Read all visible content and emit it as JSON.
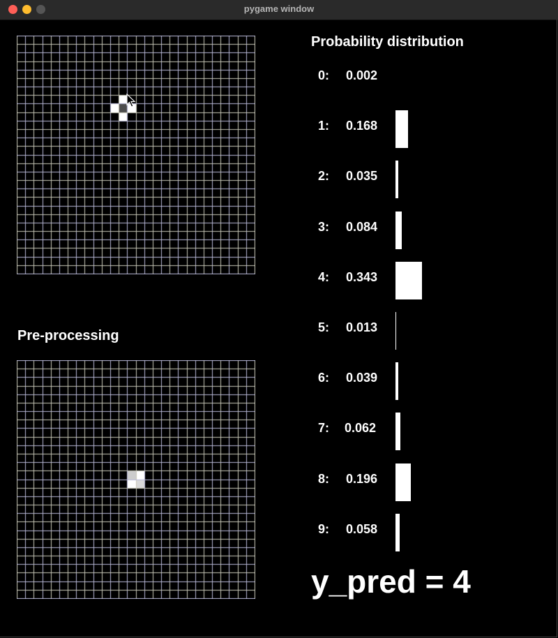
{
  "window": {
    "title": "pygame window"
  },
  "input_grid": {
    "rows": 28,
    "cols": 28,
    "filled_cells": [
      {
        "r": 7,
        "c": 12,
        "v": 1.0
      },
      {
        "r": 8,
        "c": 11,
        "v": 1.0
      },
      {
        "r": 8,
        "c": 12,
        "v": 0.3
      },
      {
        "r": 8,
        "c": 13,
        "v": 1.0
      },
      {
        "r": 9,
        "c": 12,
        "v": 1.0
      }
    ]
  },
  "preprocess_grid": {
    "rows": 28,
    "cols": 28,
    "filled_cells": [
      {
        "r": 13,
        "c": 13,
        "v": 0.8
      },
      {
        "r": 13,
        "c": 14,
        "v": 1.0
      },
      {
        "r": 14,
        "c": 13,
        "v": 1.0
      },
      {
        "r": 14,
        "c": 14,
        "v": 0.85
      }
    ]
  },
  "preprocess_heading": "Pre-processing",
  "distribution": {
    "heading": "Probability distribution",
    "rows": [
      {
        "digit": "0:",
        "prob": "0.002",
        "value": 0.002
      },
      {
        "digit": "1:",
        "prob": "0.168",
        "value": 0.168
      },
      {
        "digit": "2:",
        "prob": "0.035",
        "value": 0.035
      },
      {
        "digit": "3:",
        "prob": "0.084",
        "value": 0.084
      },
      {
        "digit": "4:",
        "prob": "0.343",
        "value": 0.343
      },
      {
        "digit": "5:",
        "prob": "0.013",
        "value": 0.013
      },
      {
        "digit": "6:",
        "prob": "0.039",
        "value": 0.039
      },
      {
        "digit": "7:",
        "prob": "0.062",
        "value": 0.062
      },
      {
        "digit": "8:",
        "prob": "0.196",
        "value": 0.196
      },
      {
        "digit": "9:",
        "prob": "0.058",
        "value": 0.058
      }
    ]
  },
  "prediction": "y_pred = 4",
  "colors": {
    "grid_line": "#c9c8b8",
    "grid_line_alt": "#b8b8d8",
    "cell_fill": "#ffffff",
    "background": "#000000"
  }
}
